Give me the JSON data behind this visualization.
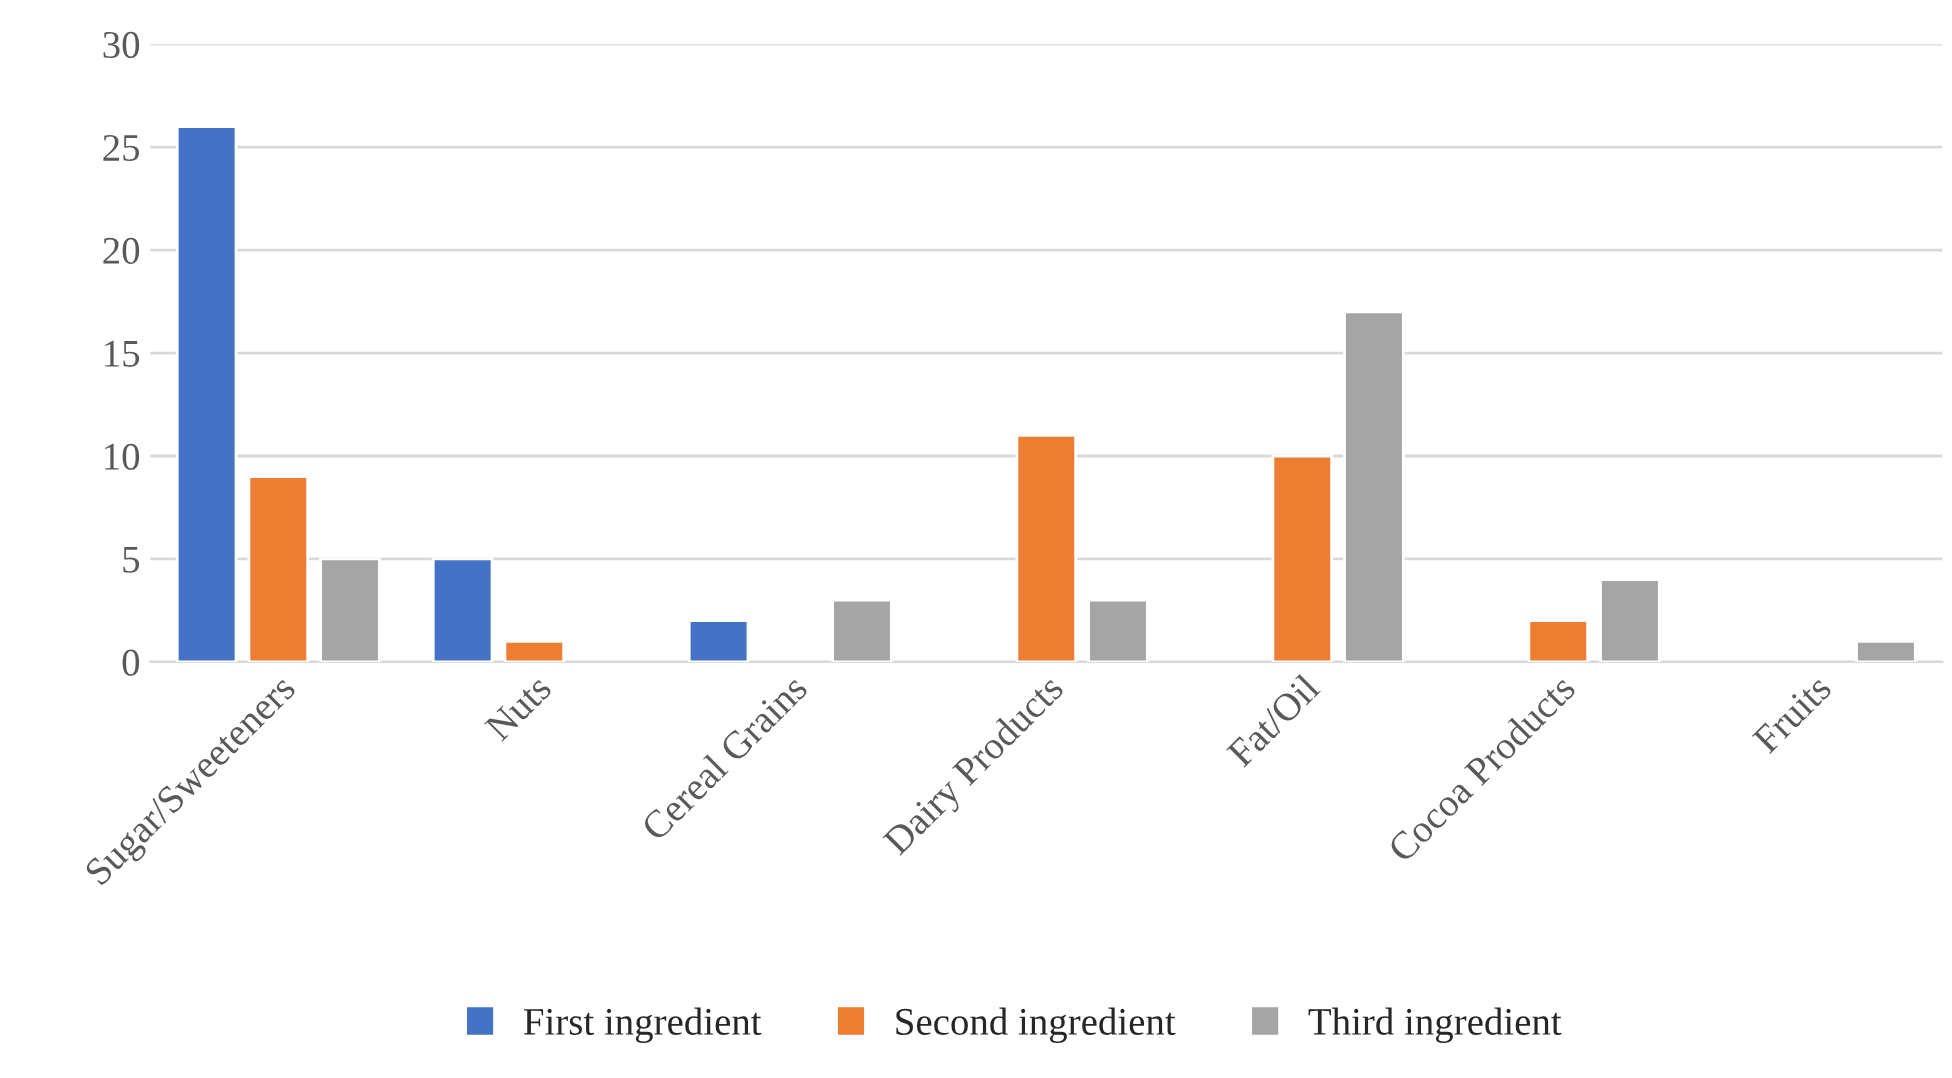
{
  "chart_data": {
    "type": "bar",
    "categories": [
      "Sugar/Sweeteners",
      "Nuts",
      "Cereal Grains",
      "Dairy Products",
      "Fat/Oil",
      "Cocoa Products",
      "Fruits"
    ],
    "series": [
      {
        "name": "First ingredient",
        "color": "#4472c4",
        "values": [
          26,
          5,
          2,
          null,
          null,
          null,
          null
        ]
      },
      {
        "name": "Second ingredient",
        "color": "#ed7d31",
        "values": [
          9,
          1,
          null,
          11,
          10,
          2,
          null
        ]
      },
      {
        "name": "Third ingredient",
        "color": "#a5a5a5",
        "values": [
          5,
          null,
          3,
          3,
          17,
          4,
          1
        ]
      }
    ],
    "ylim": [
      0,
      30
    ],
    "yticks": [
      0,
      5,
      10,
      15,
      20,
      25,
      30
    ],
    "grid": "y",
    "legend": "bottom"
  }
}
